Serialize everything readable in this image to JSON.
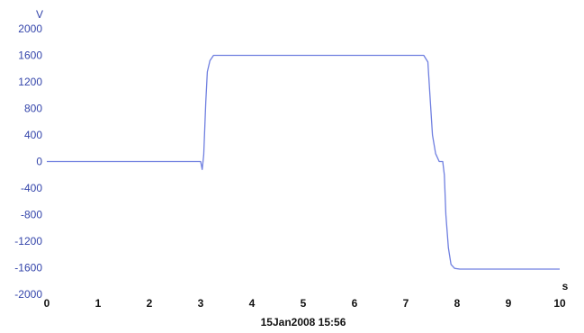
{
  "chart_data": {
    "type": "line",
    "title": "",
    "xlabel": "s",
    "ylabel": "V",
    "x_unit": "s",
    "y_unit": "V",
    "xlim": [
      0,
      10
    ],
    "ylim": [
      -2000,
      2000
    ],
    "x_ticks": [
      "0",
      "1",
      "2",
      "3",
      "4",
      "5",
      "6",
      "7",
      "8",
      "9",
      "10"
    ],
    "y_ticks": [
      "2000",
      "1600",
      "1200",
      "800",
      "400",
      "0",
      "-400",
      "-800",
      "-1200",
      "-1600",
      "-2000"
    ],
    "grid": false,
    "timestamp": "15Jan2008  15:56",
    "colors": {
      "line": "#6f7fe0",
      "y_labels": "#3344aa",
      "x_labels": "#111111"
    },
    "series": [
      {
        "x": [
          0,
          3.0,
          3.03,
          3.06,
          3.1,
          3.13,
          3.18,
          3.25,
          3.35,
          7.35,
          7.43,
          7.47,
          7.52,
          7.58,
          7.65,
          7.72,
          7.75,
          7.78,
          7.83,
          7.88,
          7.95,
          8.05,
          8.2,
          10
        ],
        "y": [
          0,
          0,
          -120,
          100,
          900,
          1350,
          1520,
          1600,
          1600,
          1600,
          1500,
          1000,
          400,
          120,
          0,
          0,
          -200,
          -800,
          -1300,
          -1550,
          -1610,
          -1620,
          -1620,
          -1620
        ]
      }
    ]
  }
}
